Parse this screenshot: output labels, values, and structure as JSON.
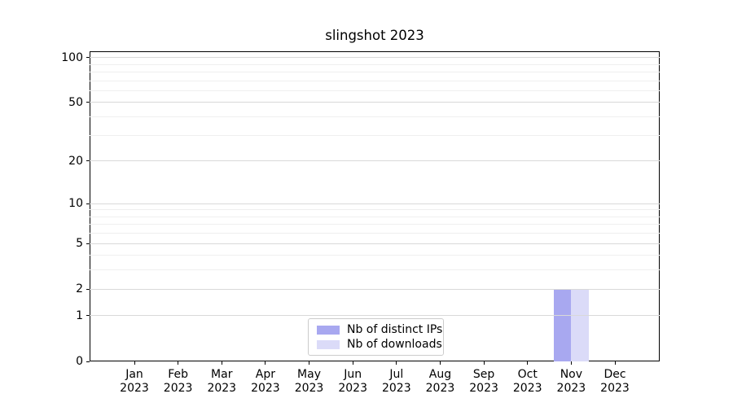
{
  "figure": {
    "background": "#ffffff"
  },
  "chart_data": {
    "type": "bar",
    "title": "slingshot 2023",
    "categories": [
      "Jan",
      "Feb",
      "Mar",
      "Apr",
      "May",
      "Jun",
      "Jul",
      "Aug",
      "Sep",
      "Oct",
      "Nov",
      "Dec"
    ],
    "category_year": "2023",
    "series": [
      {
        "name": "Nb of distinct IPs",
        "color": "#a8a8f0",
        "values": [
          0,
          0,
          0,
          0,
          0,
          0,
          0,
          0,
          0,
          0,
          2,
          0
        ]
      },
      {
        "name": "Nb of downloads",
        "color": "#dbdbf8",
        "values": [
          0,
          0,
          0,
          0,
          0,
          0,
          0,
          0,
          0,
          0,
          2,
          0
        ]
      }
    ],
    "xlabel": "",
    "ylabel": "",
    "y_scale": "log1p",
    "ylim": [
      0,
      110
    ],
    "y_major_ticks": [
      100,
      50,
      20,
      10,
      5,
      2,
      1,
      0
    ],
    "y_minor_ticks": [
      90,
      80,
      70,
      60,
      40,
      30,
      9,
      8,
      7,
      6,
      4,
      3
    ],
    "grid": true,
    "legend_position": "lower center",
    "colors": {
      "axis": "#000000",
      "major_grid": "#d9d9d9",
      "minor_grid": "#efefef",
      "text": "#000000",
      "legend_border": "#cccccc",
      "legend_bg": "#ffffff"
    }
  }
}
